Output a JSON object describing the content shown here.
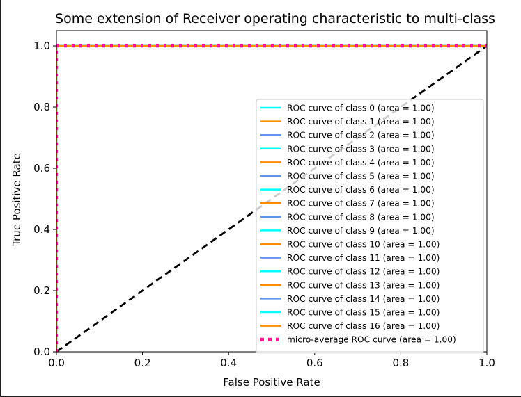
{
  "chart_data": {
    "type": "line",
    "title": "Some extension of Receiver operating characteristic to multi-class",
    "xlabel": "False Positive Rate",
    "ylabel": "True Positive Rate",
    "xlim": [
      0.0,
      1.0
    ],
    "ylim": [
      0.0,
      1.05
    ],
    "xticks": [
      0.0,
      0.2,
      0.4,
      0.6,
      0.8,
      1.0
    ],
    "xtick_labels": [
      "0.0",
      "0.2",
      "0.4",
      "0.6",
      "0.8",
      "1.0"
    ],
    "yticks": [
      0.0,
      0.2,
      0.4,
      0.6,
      0.8,
      1.0
    ],
    "ytick_labels": [
      "0.0",
      "0.2",
      "0.4",
      "0.6",
      "0.8",
      "1.0"
    ],
    "grid": false,
    "legend_position": "lower-right",
    "colors": {
      "aqua": "#00ffff",
      "darkorange": "#ff8c00",
      "cornflowerblue": "#6495ed",
      "deeppink": "#ff1493",
      "diagonal": "#000000"
    },
    "series": [
      {
        "name": "ROC curve of class 0 (area = 1.00)",
        "color": "#00ffff",
        "style": "solid",
        "x": [
          0.0,
          0.0,
          1.0
        ],
        "y": [
          0.0,
          1.0,
          1.0
        ]
      },
      {
        "name": "ROC curve of class 1 (area = 1.00)",
        "color": "#ff8c00",
        "style": "solid",
        "x": [
          0.0,
          0.0,
          1.0
        ],
        "y": [
          0.0,
          1.0,
          1.0
        ]
      },
      {
        "name": "ROC curve of class 2 (area = 1.00)",
        "color": "#6495ed",
        "style": "solid",
        "x": [
          0.0,
          0.0,
          1.0
        ],
        "y": [
          0.0,
          1.0,
          1.0
        ]
      },
      {
        "name": "ROC curve of class 3 (area = 1.00)",
        "color": "#00ffff",
        "style": "solid",
        "x": [
          0.0,
          0.0,
          1.0
        ],
        "y": [
          0.0,
          1.0,
          1.0
        ]
      },
      {
        "name": "ROC curve of class 4 (area = 1.00)",
        "color": "#ff8c00",
        "style": "solid",
        "x": [
          0.0,
          0.0,
          1.0
        ],
        "y": [
          0.0,
          1.0,
          1.0
        ]
      },
      {
        "name": "ROC curve of class 5 (area = 1.00)",
        "color": "#6495ed",
        "style": "solid",
        "x": [
          0.0,
          0.0,
          1.0
        ],
        "y": [
          0.0,
          1.0,
          1.0
        ]
      },
      {
        "name": "ROC curve of class 6 (area = 1.00)",
        "color": "#00ffff",
        "style": "solid",
        "x": [
          0.0,
          0.0,
          1.0
        ],
        "y": [
          0.0,
          1.0,
          1.0
        ]
      },
      {
        "name": "ROC curve of class 7 (area = 1.00)",
        "color": "#ff8c00",
        "style": "solid",
        "x": [
          0.0,
          0.0,
          1.0
        ],
        "y": [
          0.0,
          1.0,
          1.0
        ]
      },
      {
        "name": "ROC curve of class 8 (area = 1.00)",
        "color": "#6495ed",
        "style": "solid",
        "x": [
          0.0,
          0.0,
          1.0
        ],
        "y": [
          0.0,
          1.0,
          1.0
        ]
      },
      {
        "name": "ROC curve of class 9 (area = 1.00)",
        "color": "#00ffff",
        "style": "solid",
        "x": [
          0.0,
          0.0,
          1.0
        ],
        "y": [
          0.0,
          1.0,
          1.0
        ]
      },
      {
        "name": "ROC curve of class 10 (area = 1.00)",
        "color": "#ff8c00",
        "style": "solid",
        "x": [
          0.0,
          0.0,
          1.0
        ],
        "y": [
          0.0,
          1.0,
          1.0
        ]
      },
      {
        "name": "ROC curve of class 11 (area = 1.00)",
        "color": "#6495ed",
        "style": "solid",
        "x": [
          0.0,
          0.0,
          1.0
        ],
        "y": [
          0.0,
          1.0,
          1.0
        ]
      },
      {
        "name": "ROC curve of class 12 (area = 1.00)",
        "color": "#00ffff",
        "style": "solid",
        "x": [
          0.0,
          0.0,
          1.0
        ],
        "y": [
          0.0,
          1.0,
          1.0
        ]
      },
      {
        "name": "ROC curve of class 13 (area = 1.00)",
        "color": "#ff8c00",
        "style": "solid",
        "x": [
          0.0,
          0.0,
          1.0
        ],
        "y": [
          0.0,
          1.0,
          1.0
        ]
      },
      {
        "name": "ROC curve of class 14 (area = 1.00)",
        "color": "#6495ed",
        "style": "solid",
        "x": [
          0.0,
          0.0,
          1.0
        ],
        "y": [
          0.0,
          1.0,
          1.0
        ]
      },
      {
        "name": "ROC curve of class 15 (area = 1.00)",
        "color": "#00ffff",
        "style": "solid",
        "x": [
          0.0,
          0.0,
          1.0
        ],
        "y": [
          0.0,
          1.0,
          1.0
        ]
      },
      {
        "name": "ROC curve of class 16 (area = 1.00)",
        "color": "#ff8c00",
        "style": "solid",
        "x": [
          0.0,
          0.0,
          1.0
        ],
        "y": [
          0.0,
          1.0,
          1.0
        ]
      },
      {
        "name": "micro-average ROC curve (area = 1.00)",
        "color": "#ff1493",
        "style": "dotted",
        "x": [
          0.0,
          0.0,
          1.0
        ],
        "y": [
          0.0,
          1.0,
          1.0
        ]
      }
    ],
    "diagonal": {
      "color": "#000000",
      "style": "dashed",
      "x": [
        0.0,
        1.0
      ],
      "y": [
        0.0,
        1.0
      ]
    }
  }
}
